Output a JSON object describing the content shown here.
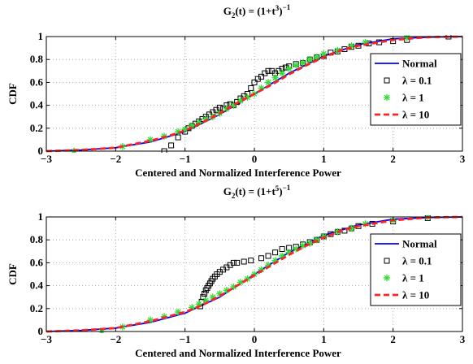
{
  "colors": {
    "normal": "#0000ff",
    "lambda_0_1": "#000000",
    "lambda_1": "#33dd33",
    "lambda_10": "#ff2222",
    "grid": "#9a9a9a"
  },
  "chart_data": [
    {
      "type": "line",
      "title": "G_2(t) = (1+t^3)^-1",
      "title_parts": {
        "prefix": "G",
        "sub": "2",
        "mid": "(t) = (1+t",
        "sup": "3",
        "close": ")",
        "supclose": "−1"
      },
      "xlabel": "Centered and Normalized Interference Power",
      "ylabel": "CDF",
      "xlim": [
        -3,
        3
      ],
      "ylim": [
        0,
        1
      ],
      "xticks": [
        -3,
        -2,
        -1,
        0,
        1,
        2,
        3
      ],
      "xtick_labels": [
        "−3",
        "−2",
        "−1",
        "0",
        "1",
        "2",
        "3"
      ],
      "yticks": [
        0,
        0.2,
        0.4,
        0.6,
        0.8,
        1
      ],
      "ytick_labels": [
        "0",
        "0.2",
        "0.4",
        "0.6",
        "0.8",
        "1"
      ],
      "grid": true,
      "legend_position": "right",
      "series": [
        {
          "name": "Normal",
          "style": "solid-line",
          "x": [
            -3,
            -2.5,
            -2,
            -1.5,
            -1,
            -0.5,
            0,
            0.5,
            1,
            1.5,
            2,
            2.5,
            3
          ],
          "y": [
            0.0,
            0.01,
            0.03,
            0.08,
            0.17,
            0.32,
            0.5,
            0.68,
            0.83,
            0.93,
            0.98,
            0.995,
            1.0
          ]
        },
        {
          "name": "λ = 0.1",
          "style": "square-markers",
          "x": [
            -1.3,
            -1.2,
            -1.1,
            -1.0,
            -0.95,
            -0.9,
            -0.85,
            -0.8,
            -0.75,
            -0.7,
            -0.65,
            -0.6,
            -0.55,
            -0.5,
            -0.45,
            -0.4,
            -0.35,
            -0.3,
            -0.25,
            -0.2,
            -0.15,
            -0.1,
            -0.05,
            0.0,
            0.05,
            0.1,
            0.15,
            0.2,
            0.25,
            0.3,
            0.35,
            0.4,
            0.45,
            0.5,
            0.6,
            0.7,
            0.8,
            0.9,
            1.0,
            1.1,
            1.2,
            1.3,
            1.4,
            1.5,
            1.65,
            1.8,
            2.0,
            2.2,
            2.8
          ],
          "y": [
            0.0,
            0.05,
            0.12,
            0.17,
            0.2,
            0.22,
            0.24,
            0.26,
            0.28,
            0.3,
            0.32,
            0.34,
            0.36,
            0.38,
            0.37,
            0.4,
            0.41,
            0.4,
            0.43,
            0.46,
            0.48,
            0.5,
            0.55,
            0.6,
            0.63,
            0.65,
            0.68,
            0.7,
            0.7,
            0.68,
            0.7,
            0.72,
            0.73,
            0.74,
            0.76,
            0.77,
            0.8,
            0.82,
            0.83,
            0.86,
            0.87,
            0.89,
            0.91,
            0.92,
            0.94,
            0.95,
            0.96,
            0.97,
            1.0
          ]
        },
        {
          "name": "λ = 1",
          "style": "asterisk-markers",
          "x": [
            -2.6,
            -1.9,
            -1.5,
            -1.3,
            -1.1,
            -1.0,
            -0.9,
            -0.8,
            -0.7,
            -0.6,
            -0.5,
            -0.4,
            -0.3,
            -0.2,
            -0.1,
            0.0,
            0.1,
            0.2,
            0.3,
            0.4,
            0.5,
            0.6,
            0.7,
            0.8,
            0.9,
            1.0,
            1.2,
            1.4,
            1.6,
            2.2
          ],
          "y": [
            0.0,
            0.04,
            0.1,
            0.13,
            0.17,
            0.19,
            0.22,
            0.25,
            0.28,
            0.3,
            0.33,
            0.37,
            0.4,
            0.44,
            0.47,
            0.5,
            0.55,
            0.6,
            0.64,
            0.68,
            0.72,
            0.75,
            0.77,
            0.8,
            0.82,
            0.85,
            0.88,
            0.92,
            0.95,
            0.99
          ]
        },
        {
          "name": "λ = 10",
          "style": "dashed-line",
          "x": [
            -3,
            -2.5,
            -2,
            -1.5,
            -1.25,
            -1,
            -0.75,
            -0.5,
            -0.25,
            0,
            0.25,
            0.5,
            0.75,
            1,
            1.25,
            1.5,
            2,
            2.5,
            3
          ],
          "y": [
            0.0,
            0.01,
            0.03,
            0.09,
            0.13,
            0.18,
            0.25,
            0.33,
            0.42,
            0.5,
            0.58,
            0.67,
            0.75,
            0.82,
            0.88,
            0.92,
            0.97,
            0.995,
            1.0
          ]
        }
      ]
    },
    {
      "type": "line",
      "title": "G_2(t) = (1+t^5)^-1",
      "title_parts": {
        "prefix": "G",
        "sub": "2",
        "mid": "(t) = (1+t",
        "sup": "5",
        "close": ")",
        "supclose": "−1"
      },
      "xlabel": "Centered and Normalized Interference Power",
      "ylabel": "CDF",
      "xlim": [
        -3,
        3
      ],
      "ylim": [
        0,
        1
      ],
      "xticks": [
        -3,
        -2,
        -1,
        0,
        1,
        2,
        3
      ],
      "xtick_labels": [
        "−3",
        "−2",
        "−1",
        "0",
        "1",
        "2",
        "3"
      ],
      "yticks": [
        0,
        0.2,
        0.4,
        0.6,
        0.8,
        1
      ],
      "ytick_labels": [
        "0",
        "0.2",
        "0.4",
        "0.6",
        "0.8",
        "1"
      ],
      "grid": true,
      "legend_position": "right",
      "series": [
        {
          "name": "Normal",
          "style": "solid-line",
          "x": [
            -3,
            -2.5,
            -2,
            -1.5,
            -1,
            -0.5,
            0,
            0.5,
            1,
            1.5,
            2,
            2.5,
            3
          ],
          "y": [
            0.0,
            0.01,
            0.03,
            0.08,
            0.16,
            0.3,
            0.5,
            0.69,
            0.84,
            0.93,
            0.98,
            0.995,
            1.0
          ]
        },
        {
          "name": "λ = 0.1",
          "style": "square-markers",
          "x": [
            -0.78,
            -0.76,
            -0.74,
            -0.72,
            -0.7,
            -0.68,
            -0.66,
            -0.64,
            -0.62,
            -0.6,
            -0.57,
            -0.54,
            -0.5,
            -0.45,
            -0.4,
            -0.35,
            -0.3,
            -0.25,
            -0.15,
            -0.05,
            0.1,
            0.2,
            0.3,
            0.4,
            0.5,
            0.6,
            0.7,
            0.8,
            0.9,
            1.0,
            1.1,
            1.2,
            1.3,
            1.4,
            1.5,
            1.7,
            2.0,
            2.5
          ],
          "y": [
            0.22,
            0.26,
            0.3,
            0.33,
            0.36,
            0.38,
            0.4,
            0.42,
            0.44,
            0.46,
            0.48,
            0.5,
            0.52,
            0.54,
            0.56,
            0.58,
            0.6,
            0.6,
            0.61,
            0.62,
            0.64,
            0.66,
            0.69,
            0.72,
            0.73,
            0.74,
            0.76,
            0.78,
            0.8,
            0.83,
            0.85,
            0.87,
            0.88,
            0.9,
            0.92,
            0.94,
            0.96,
            0.99
          ]
        },
        {
          "name": "λ = 1",
          "style": "asterisk-markers",
          "x": [
            -2.2,
            -1.9,
            -1.5,
            -1.3,
            -1.1,
            -0.9,
            -0.8,
            -0.7,
            -0.6,
            -0.5,
            -0.4,
            -0.3,
            -0.2,
            -0.1,
            0.0,
            0.1,
            0.2,
            0.3,
            0.4,
            0.5,
            0.6,
            0.7,
            0.8,
            0.9,
            1.0,
            1.2,
            1.4,
            1.6,
            2.0,
            2.5
          ],
          "y": [
            0.0,
            0.04,
            0.1,
            0.13,
            0.17,
            0.21,
            0.24,
            0.27,
            0.3,
            0.33,
            0.36,
            0.39,
            0.43,
            0.46,
            0.5,
            0.54,
            0.58,
            0.62,
            0.66,
            0.69,
            0.72,
            0.75,
            0.77,
            0.8,
            0.83,
            0.87,
            0.9,
            0.94,
            0.97,
            1.0
          ]
        },
        {
          "name": "λ = 10",
          "style": "dashed-line",
          "x": [
            -3,
            -2.5,
            -2,
            -1.5,
            -1.25,
            -1,
            -0.75,
            -0.5,
            -0.25,
            0,
            0.25,
            0.5,
            0.75,
            1,
            1.25,
            1.5,
            2,
            2.5,
            3
          ],
          "y": [
            0.0,
            0.01,
            0.03,
            0.09,
            0.13,
            0.17,
            0.23,
            0.31,
            0.4,
            0.49,
            0.58,
            0.67,
            0.75,
            0.82,
            0.88,
            0.92,
            0.97,
            0.995,
            1.0
          ]
        }
      ]
    }
  ]
}
